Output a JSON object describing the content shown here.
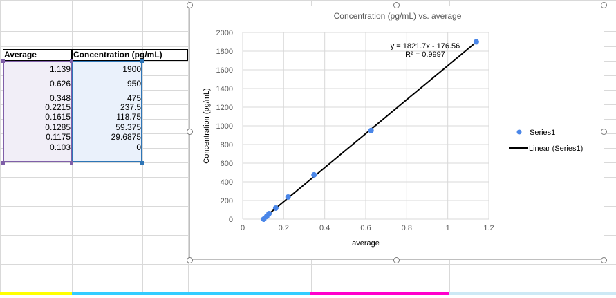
{
  "table": {
    "headers": [
      "Average",
      "Concentration (pg/mL)"
    ],
    "rows": [
      [
        "1.139",
        "1900"
      ],
      [
        "0.626",
        "950"
      ],
      [
        "0.348",
        "475"
      ],
      [
        "0.2215",
        "237.5"
      ],
      [
        "0.1615",
        "118.75"
      ],
      [
        "0.1285",
        "59.375"
      ],
      [
        "0.1175",
        "29.6875"
      ],
      [
        "0.103",
        "0"
      ]
    ]
  },
  "chart_data": {
    "type": "scatter",
    "title": "Concentration (pg/mL) vs. average",
    "xlabel": "average",
    "ylabel": "Concentration (pg/mL)",
    "xlim": [
      0,
      1.2
    ],
    "ylim": [
      0,
      2000
    ],
    "x_ticks": [
      "0",
      "0.2",
      "0.4",
      "0.6",
      "0.8",
      "1",
      "1.2"
    ],
    "y_ticks": [
      "0",
      "200",
      "400",
      "600",
      "800",
      "1000",
      "1200",
      "1400",
      "1600",
      "1800",
      "2000"
    ],
    "series": [
      {
        "name": "Series1",
        "x": [
          1.139,
          0.626,
          0.348,
          0.2215,
          0.1615,
          0.1285,
          0.1175,
          0.103
        ],
        "y": [
          1900,
          950,
          475,
          237.5,
          118.75,
          59.375,
          29.6875,
          0
        ],
        "color": "#4a86e8"
      }
    ],
    "trendline": {
      "name": "Linear (Series1)",
      "type": "linear",
      "slope": 1821.7,
      "intercept": -176.56,
      "equation": "y = 1821.7x - 176.56",
      "r2": "R² = 0.9997",
      "color": "#000000"
    },
    "legend": "right",
    "grid": true
  },
  "colors": {
    "selection_avg": "#7f5fa8",
    "selection_conc": "#2e75b6",
    "avg_fill": "#f1eef7",
    "conc_fill": "#eaf1fb"
  }
}
